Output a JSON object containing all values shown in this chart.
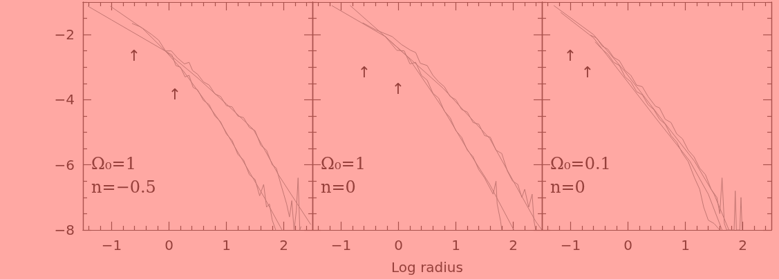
{
  "chart_data": [
    {
      "type": "line",
      "xlim": [
        -1.5,
        2.5
      ],
      "xticks": [
        -1,
        0,
        1,
        2
      ],
      "ylim": [
        -8,
        -1
      ],
      "yticks": [
        -8,
        -6,
        -4,
        -2
      ],
      "marker": "none",
      "line_style": "solid",
      "annotations": [
        "Ω₀=1",
        "n=−0.5",
        "↑",
        "↑"
      ],
      "series": [
        {
          "color": "#c37672",
          "x": [
            -1.41,
            -1,
            -0.5,
            -0.06,
            0.5,
            1,
            1.47,
            1.91,
            2.2,
            2.47
          ],
          "values": [
            -1.13,
            -1.55,
            -2.06,
            -2.51,
            -3.33,
            -4.13,
            -4.91,
            -6.31,
            -7.1,
            -7.83
          ]
        },
        {
          "color": "#c37672",
          "x": [
            -1.02,
            -0.46,
            -0.06,
            0.26,
            0.87,
            1.27,
            1.67,
            1.97
          ],
          "values": [
            -1.13,
            -1.81,
            -2.51,
            -3.14,
            -4.62,
            -5.82,
            -7.03,
            -8
          ]
        },
        {
          "color": "#c37672",
          "x": [
            -0.64,
            -0.5,
            -0.42,
            -0.3,
            -0.18,
            -0.06,
            0.04,
            0.15,
            0.27,
            0.35,
            0.41,
            0.5,
            0.6,
            0.7,
            0.8,
            0.9,
            1.0,
            1.1,
            1.2,
            1.3,
            1.4,
            1.5,
            1.6,
            1.7,
            1.8,
            1.87,
            1.95,
            2.0,
            2.05,
            2.1,
            2.14,
            2.18,
            2.22,
            2.25,
            2.28,
            2.3
          ],
          "values": [
            -1.66,
            -1.76,
            -1.85,
            -2.0,
            -2.17,
            -2.5,
            -2.5,
            -2.72,
            -2.9,
            -2.85,
            -3.1,
            -3.22,
            -3.45,
            -3.55,
            -3.82,
            -3.9,
            -4.18,
            -4.22,
            -4.5,
            -4.55,
            -4.85,
            -4.95,
            -5.4,
            -5.55,
            -6.0,
            -6.1,
            -6.6,
            -6.9,
            -7.2,
            -7.6,
            -7.1,
            -8,
            -7.4,
            -6.4,
            -8,
            -7.9
          ]
        },
        {
          "color": "#c37672",
          "x": [
            -0.06,
            0.05,
            0.12,
            0.2,
            0.28,
            0.35,
            0.42,
            0.5,
            0.6,
            0.7,
            0.8,
            0.9,
            1.0,
            1.1,
            1.2,
            1.3,
            1.4,
            1.5,
            1.58,
            1.65,
            1.7,
            1.75,
            1.8,
            1.86
          ],
          "values": [
            -2.51,
            -2.62,
            -2.95,
            -3.0,
            -3.3,
            -3.25,
            -3.62,
            -3.7,
            -4.02,
            -4.15,
            -4.5,
            -4.68,
            -5.05,
            -5.25,
            -5.68,
            -5.85,
            -6.3,
            -6.45,
            -6.95,
            -6.6,
            -7.3,
            -7.2,
            -7.7,
            -8
          ]
        }
      ]
    },
    {
      "type": "line",
      "xlabel": "Log radius",
      "xlim": [
        -1.5,
        2.5
      ],
      "xticks": [
        -1,
        0,
        1,
        2
      ],
      "ylim": [
        -8,
        -1
      ],
      "yticks": [
        -8,
        -6,
        -4,
        -2
      ],
      "tick_labels": "x",
      "marker": "none",
      "line_style": "solid",
      "annotations": [
        "Ω₀=1",
        "n=0",
        "↑",
        "↑"
      ],
      "series": [
        {
          "color": "#c37672",
          "x": [
            -1.16,
            -0.23,
            0.78,
            1.59,
            1.99,
            2.39,
            2.5
          ],
          "values": [
            -1.11,
            -2.06,
            -3.65,
            -5.19,
            -6.46,
            -7.73,
            -8
          ]
        },
        {
          "color": "#c37672",
          "x": [
            -0.84,
            -0.23,
            0.17,
            0.78,
            1.18,
            1.59,
            2.01
          ],
          "values": [
            -1.11,
            -2.06,
            -2.7,
            -4.28,
            -5.47,
            -6.6,
            -8
          ]
        },
        {
          "color": "#c37672",
          "x": [
            -0.62,
            -0.4,
            -0.11,
            0.05,
            0.21,
            0.3,
            0.38,
            0.5,
            0.6,
            0.7,
            0.8,
            0.9,
            1.0,
            1.1,
            1.2,
            1.3,
            1.4,
            1.5,
            1.6,
            1.7,
            1.8,
            1.9,
            1.99,
            2.08,
            2.15,
            2.2,
            2.27,
            2.33,
            2.36,
            2.39
          ],
          "values": [
            -1.64,
            -1.85,
            -2.06,
            -2.3,
            -2.48,
            -2.55,
            -2.88,
            -2.95,
            -3.25,
            -3.45,
            -3.6,
            -3.9,
            -4.0,
            -4.3,
            -4.38,
            -4.7,
            -4.75,
            -5.1,
            -5.15,
            -5.55,
            -5.65,
            -6.2,
            -6.5,
            -6.6,
            -7.0,
            -6.75,
            -7.3,
            -6.9,
            -7.7,
            -8
          ]
        },
        {
          "color": "#c37672",
          "x": [
            -0.23,
            -0.03,
            0.1,
            0.2,
            0.3,
            0.4,
            0.5,
            0.6,
            0.7,
            0.8,
            0.9,
            1.0,
            1.1,
            1.2,
            1.3,
            1.4,
            1.5,
            1.56,
            1.65,
            1.7,
            1.72,
            1.78,
            1.8
          ],
          "values": [
            -2.06,
            -2.48,
            -2.5,
            -2.9,
            -2.85,
            -3.25,
            -3.4,
            -3.8,
            -3.95,
            -4.35,
            -4.55,
            -4.95,
            -5.15,
            -5.55,
            -5.75,
            -6.15,
            -6.4,
            -6.6,
            -6.9,
            -6.5,
            -7.2,
            -7.73,
            -8
          ]
        }
      ]
    },
    {
      "type": "line",
      "xlim": [
        -1.5,
        2.5
      ],
      "xticks": [
        -1,
        0,
        1,
        2
      ],
      "ylim": [
        -8,
        -1
      ],
      "yticks": [
        -8,
        -6,
        -4,
        -2
      ],
      "tick_labels": "x",
      "marker": "none",
      "line_style": "solid",
      "annotations": [
        "Ω₀=0.1",
        "n=0",
        "↑",
        "↑"
      ],
      "series": [
        {
          "color": "#c37672",
          "x": [
            -1.29,
            -0.6,
            -0.05,
            0.5,
            1.16,
            1.5,
            1.76
          ],
          "values": [
            -1.11,
            -2.0,
            -3.14,
            -4.4,
            -5.89,
            -6.9,
            -8
          ]
        },
        {
          "color": "#c37672",
          "x": [
            -1.17,
            -0.6,
            -0.05,
            0.5,
            1.08,
            1.4,
            1.64
          ],
          "values": [
            -1.32,
            -2.1,
            -3.35,
            -4.6,
            -5.89,
            -6.9,
            -8
          ]
        },
        {
          "color": "#c37672",
          "x": [
            -0.65,
            -0.55,
            -0.45,
            -0.35,
            -0.25,
            -0.15,
            -0.05,
            0.05,
            0.15,
            0.25,
            0.35,
            0.48,
            0.55,
            0.65,
            0.75,
            0.85,
            0.95,
            1.05,
            1.15,
            1.25,
            1.35,
            1.45,
            1.55,
            1.6,
            1.64,
            1.68,
            1.72,
            1.85,
            1.87,
            1.89,
            1.95,
            1.97,
            1.99
          ],
          "values": [
            -2.02,
            -2.1,
            -2.35,
            -2.45,
            -2.7,
            -2.8,
            -3.1,
            -3.25,
            -3.55,
            -3.6,
            -3.9,
            -4.2,
            -4.25,
            -4.6,
            -4.7,
            -5.05,
            -5.2,
            -5.55,
            -5.75,
            -6.1,
            -6.3,
            -6.75,
            -7.0,
            -7.5,
            -6.4,
            -7.8,
            -8,
            -8,
            -6.8,
            -8,
            -8,
            -7.0,
            -8
          ]
        },
        {
          "color": "#c37672",
          "x": [
            -0.57,
            -0.45,
            -0.35,
            -0.25,
            -0.15,
            -0.05,
            0.05,
            0.15,
            0.25,
            0.35,
            0.45,
            0.55,
            0.65,
            0.75,
            0.85,
            0.95,
            1.05,
            1.16,
            1.25,
            1.32,
            1.4,
            1.5,
            1.6
          ],
          "values": [
            -2.23,
            -2.45,
            -2.6,
            -2.85,
            -2.95,
            -3.3,
            -3.45,
            -3.75,
            -3.85,
            -4.15,
            -4.3,
            -4.6,
            -4.75,
            -5.1,
            -5.3,
            -5.65,
            -5.9,
            -6.4,
            -6.75,
            -7.3,
            -7.7,
            -7.8,
            -8
          ]
        }
      ]
    }
  ]
}
